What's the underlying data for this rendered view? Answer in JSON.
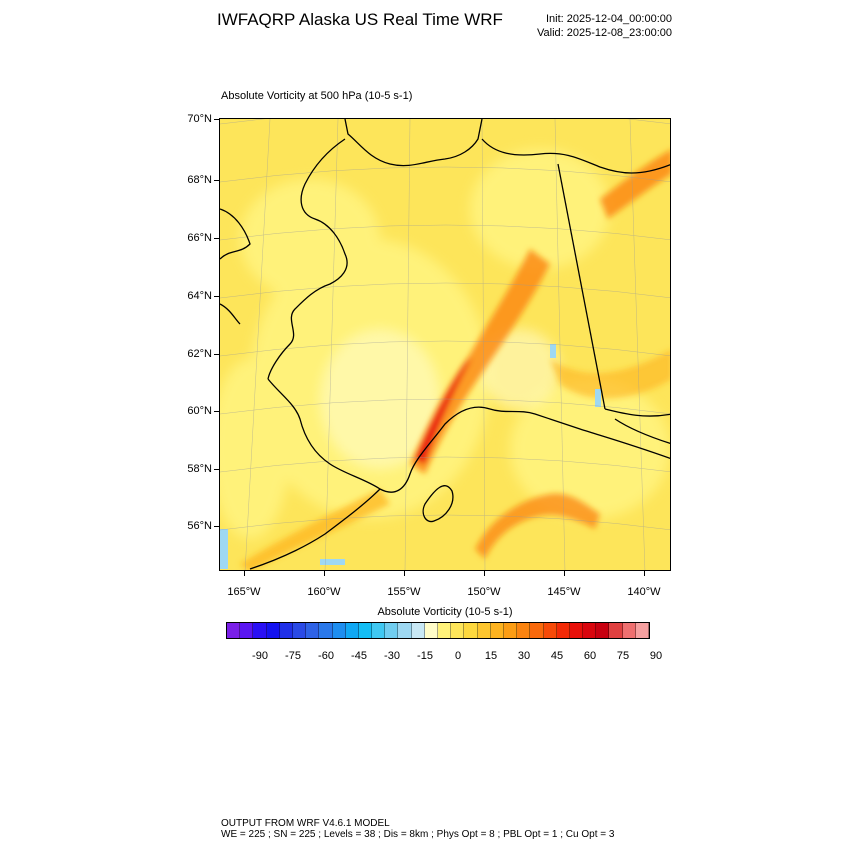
{
  "header": {
    "title": "IWFAQRP Alaska US Real Time WRF",
    "init": "Init: 2025-12-04_00:00:00",
    "valid": "Valid: 2025-12-08_23:00:00"
  },
  "field_title": "Absolute Vorticity at 500 hPa   (10-5 s-1)",
  "map": {
    "lat_labels": [
      "70°N",
      "68°N",
      "66°N",
      "64°N",
      "62°N",
      "60°N",
      "58°N",
      "56°N"
    ],
    "lon_labels": [
      "165°W",
      "160°W",
      "155°W",
      "150°W",
      "145°W",
      "140°W"
    ],
    "base_color": "#fde55a",
    "land_outline_color": "#000000"
  },
  "colorbar": {
    "title": "Absolute Vorticity  (10-5 s-1)",
    "labels": [
      "-90",
      "-75",
      "-60",
      "-45",
      "-30",
      "-15",
      "0",
      "15",
      "30",
      "45",
      "60",
      "75",
      "90"
    ],
    "colors": [
      "#7a1fe8",
      "#5a16f2",
      "#2a10f5",
      "#1412f0",
      "#2030e8",
      "#2a4ae6",
      "#2e62e6",
      "#2a78ea",
      "#1e8ef0",
      "#10a8f4",
      "#14bef5",
      "#40c8f2",
      "#70cdf0",
      "#9ed8f2",
      "#c8e8f5",
      "#fffcc8",
      "#fff27a",
      "#fde55a",
      "#fdd83e",
      "#fdc52e",
      "#fdb320",
      "#fc9d14",
      "#fb8410",
      "#f9690c",
      "#f64a08",
      "#f22a06",
      "#e8100a",
      "#d9060e",
      "#c80010",
      "#e04040",
      "#ef7070",
      "#f6a0a0"
    ]
  },
  "footer": {
    "line1": "OUTPUT FROM WRF V4.6.1 MODEL",
    "line2": "WE = 225 ; SN = 225 ; Levels = 38 ; Dis = 8km ; Phys Opt = 8 ; PBL Opt = 1 ; Cu Opt = 3"
  }
}
